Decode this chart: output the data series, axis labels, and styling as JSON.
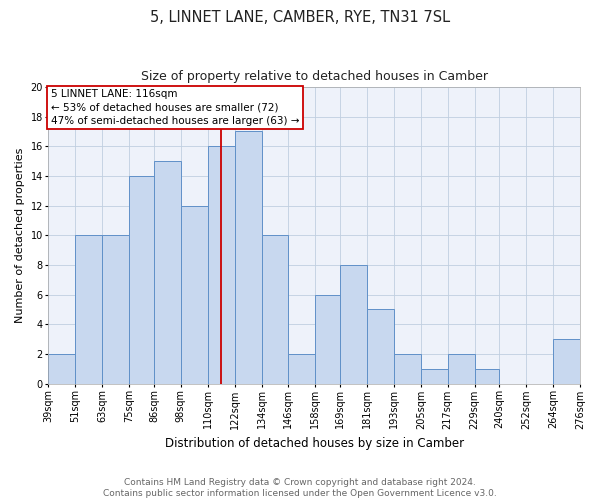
{
  "title": "5, LINNET LANE, CAMBER, RYE, TN31 7SL",
  "subtitle": "Size of property relative to detached houses in Camber",
  "xlabel": "Distribution of detached houses by size in Camber",
  "ylabel": "Number of detached properties",
  "bin_edges": [
    39,
    51,
    63,
    75,
    86,
    98,
    110,
    122,
    134,
    146,
    158,
    169,
    181,
    193,
    205,
    217,
    229,
    240,
    252,
    264,
    276
  ],
  "counts": [
    2,
    10,
    10,
    14,
    15,
    12,
    16,
    17,
    10,
    2,
    6,
    8,
    5,
    2,
    1,
    2,
    1,
    0,
    0,
    3
  ],
  "bar_facecolor": "#c8d8ef",
  "bar_edgecolor": "#6090c8",
  "grid_color": "#c0cfe0",
  "background_color": "#ffffff",
  "plot_bg_color": "#eef2fa",
  "property_line_x": 116,
  "property_line_color": "#cc0000",
  "annotation_text": "5 LINNET LANE: 116sqm\n← 53% of detached houses are smaller (72)\n47% of semi-detached houses are larger (63) →",
  "annotation_box_edgecolor": "#cc0000",
  "annotation_box_facecolor": "#ffffff",
  "ylim": [
    0,
    20
  ],
  "yticks": [
    0,
    2,
    4,
    6,
    8,
    10,
    12,
    14,
    16,
    18,
    20
  ],
  "tick_labels": [
    "39sqm",
    "51sqm",
    "63sqm",
    "75sqm",
    "86sqm",
    "98sqm",
    "110sqm",
    "122sqm",
    "134sqm",
    "146sqm",
    "158sqm",
    "169sqm",
    "181sqm",
    "193sqm",
    "205sqm",
    "217sqm",
    "229sqm",
    "240sqm",
    "252sqm",
    "264sqm",
    "276sqm"
  ],
  "footer_text": "Contains HM Land Registry data © Crown copyright and database right 2024.\nContains public sector information licensed under the Open Government Licence v3.0.",
  "title_fontsize": 10.5,
  "subtitle_fontsize": 9,
  "xlabel_fontsize": 8.5,
  "ylabel_fontsize": 8,
  "tick_fontsize": 7,
  "footer_fontsize": 6.5,
  "annot_fontsize": 7.5
}
